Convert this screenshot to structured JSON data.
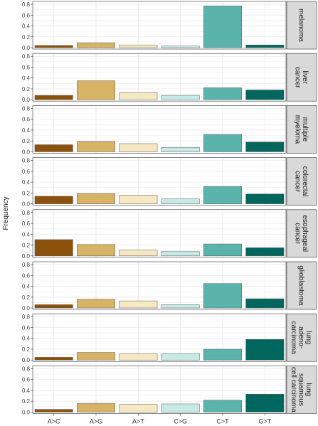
{
  "chart_data": {
    "type": "bar",
    "ylabel": "Frequency",
    "xlabel": "",
    "categories": [
      "A>C",
      "A>G",
      "A>T",
      "C>G",
      "C>T",
      "G>T"
    ],
    "y_ticks": [
      "0.0",
      "0.2",
      "0.4",
      "0.6",
      "0.8"
    ],
    "ylim": [
      0,
      0.8
    ],
    "colors": [
      "#8c510a",
      "#d8b365",
      "#f6e8c3",
      "#c7eae5",
      "#5ab4ac",
      "#01665e"
    ],
    "grid": true,
    "facets": [
      {
        "label_lines": [
          "melanoma"
        ],
        "values": [
          0.04,
          0.09,
          0.05,
          0.03,
          0.77,
          0.05
        ]
      },
      {
        "label_lines": [
          "liver",
          "cancer"
        ],
        "values": [
          0.08,
          0.35,
          0.13,
          0.08,
          0.22,
          0.18
        ]
      },
      {
        "label_lines": [
          "multiple",
          "myeloma"
        ],
        "values": [
          0.13,
          0.19,
          0.15,
          0.08,
          0.32,
          0.18
        ]
      },
      {
        "label_lines": [
          "colorectal",
          "cancer"
        ],
        "values": [
          0.14,
          0.19,
          0.16,
          0.09,
          0.32,
          0.18
        ]
      },
      {
        "label_lines": [
          "esophageal",
          "cancer"
        ],
        "values": [
          0.3,
          0.21,
          0.11,
          0.08,
          0.22,
          0.15
        ]
      },
      {
        "label_lines": [
          "glioblastoma"
        ],
        "values": [
          0.06,
          0.16,
          0.13,
          0.06,
          0.45,
          0.17
        ]
      },
      {
        "label_lines": [
          "lung",
          "adeno-",
          "carcinoma"
        ],
        "values": [
          0.05,
          0.14,
          0.12,
          0.12,
          0.2,
          0.38
        ]
      },
      {
        "label_lines": [
          "lung",
          "squamous",
          "cell carcinoma"
        ],
        "values": [
          0.05,
          0.16,
          0.14,
          0.15,
          0.22,
          0.33
        ]
      }
    ]
  }
}
